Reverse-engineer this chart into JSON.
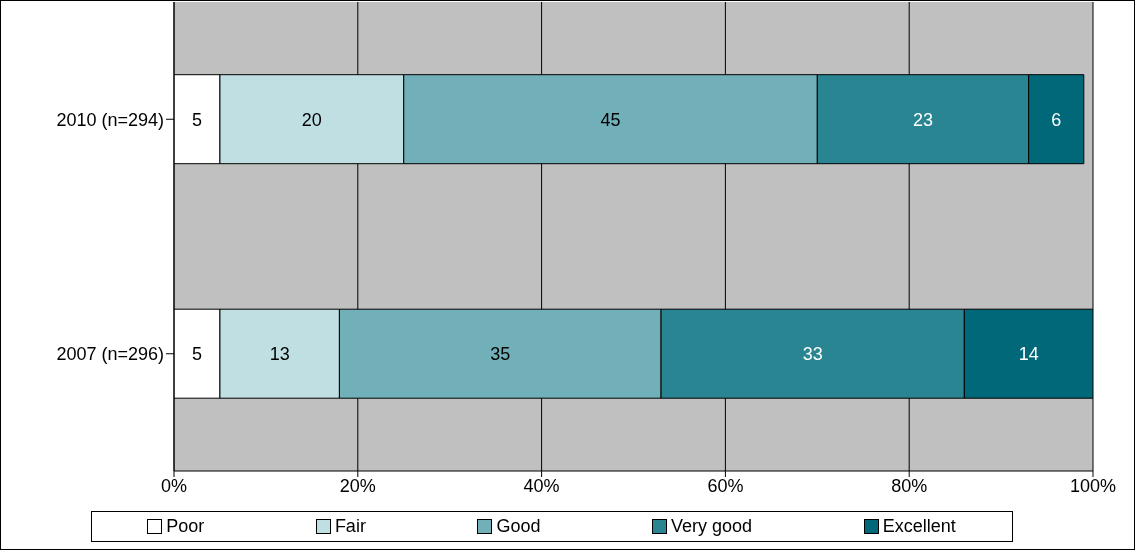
{
  "chart_data": {
    "type": "bar",
    "orientation": "horizontal",
    "stacked": true,
    "categories": [
      "2010 (n=294)",
      "2007 (n=296)"
    ],
    "series": [
      {
        "name": "Poor",
        "color": "#ffffff",
        "values": [
          5,
          5
        ]
      },
      {
        "name": "Fair",
        "color": "#c0dfe3",
        "values": [
          20,
          13
        ]
      },
      {
        "name": "Good",
        "color": "#72b0b9",
        "values": [
          45,
          35
        ]
      },
      {
        "name": "Very good",
        "color": "#2a8593",
        "values": [
          23,
          33
        ]
      },
      {
        "name": "Excellent",
        "color": "#006878",
        "values": [
          6,
          14
        ]
      }
    ],
    "xlim": [
      0,
      100
    ],
    "xticks": [
      {
        "value": 0,
        "label": "0%"
      },
      {
        "value": 20,
        "label": "20%"
      },
      {
        "value": 40,
        "label": "40%"
      },
      {
        "value": 60,
        "label": "60%"
      },
      {
        "value": 80,
        "label": "80%"
      },
      {
        "value": 100,
        "label": "100%"
      }
    ],
    "data_labels": true,
    "grid": "x",
    "legend": "bottom"
  }
}
